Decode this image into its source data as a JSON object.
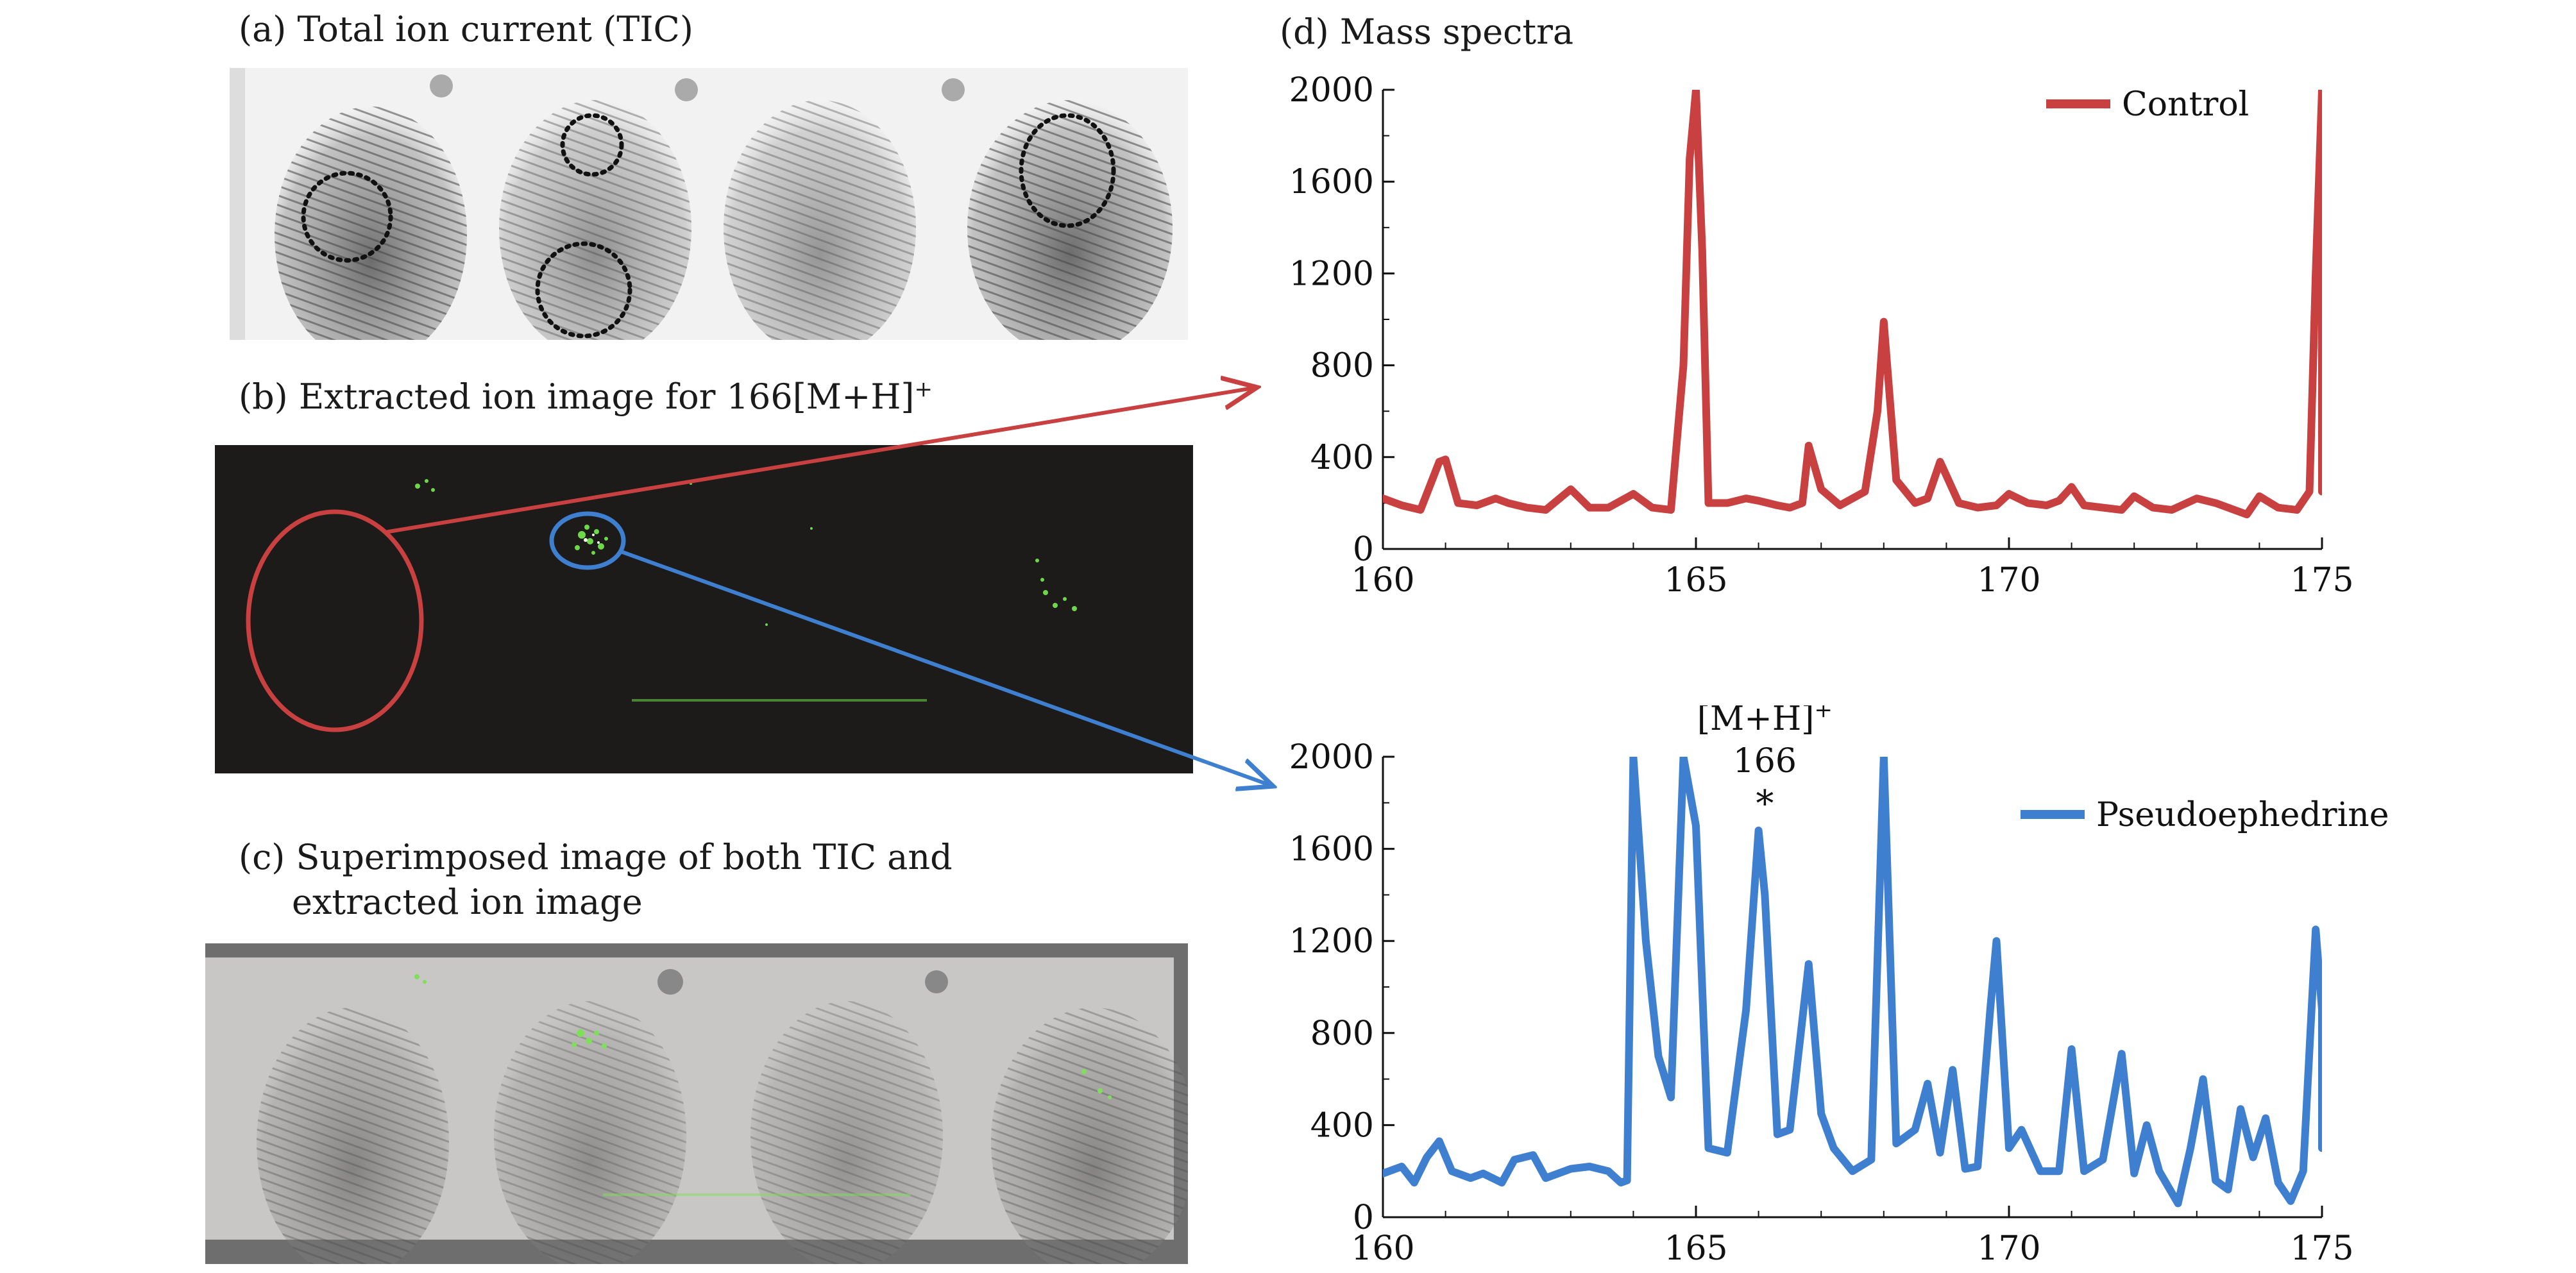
{
  "labels": {
    "a": "(a) Total ion current (TIC)",
    "b_prefix": "(b) Extracted ion image for 166[M+H]",
    "b_sup": "+",
    "c_line1": "(c) Superimposed image of both TIC and",
    "c_line2": "extracted ion image",
    "d": "(d) Mass spectra"
  },
  "colors": {
    "control": "#c94040",
    "pseudo": "#3f7fcf",
    "dark_panel": "#1a1a1a",
    "superimposed_bg": "#c8c6c4",
    "arrow_red": "#c94040",
    "arrow_blue": "#3f7fcf"
  },
  "chart_data": [
    {
      "type": "line",
      "xlim": [
        160,
        175
      ],
      "ylim": [
        0,
        2000
      ],
      "xticks": [
        160,
        165,
        170,
        175
      ],
      "yticks": [
        0,
        400,
        800,
        1200,
        1600,
        2000
      ],
      "series": [
        {
          "name": "Control",
          "x": [
            160,
            160.3,
            160.6,
            160.9,
            161,
            161.2,
            161.5,
            161.8,
            162,
            162.3,
            162.6,
            163,
            163.3,
            163.6,
            164,
            164.3,
            164.6,
            164.8,
            164.9,
            165,
            165.1,
            165.2,
            165.5,
            165.8,
            166,
            166.3,
            166.5,
            166.7,
            166.8,
            167,
            167.3,
            167.7,
            167.9,
            168,
            168.2,
            168.5,
            168.7,
            168.9,
            169.2,
            169.5,
            169.8,
            170,
            170.3,
            170.6,
            170.8,
            171,
            171.2,
            171.5,
            171.8,
            172,
            172.3,
            172.6,
            173,
            173.3,
            173.6,
            173.8,
            174,
            174.3,
            174.6,
            174.8,
            174.9,
            175,
            175.1
          ],
          "y": [
            220,
            190,
            170,
            380,
            390,
            200,
            190,
            220,
            200,
            180,
            170,
            260,
            180,
            180,
            240,
            180,
            170,
            800,
            1700,
            2000,
            1300,
            200,
            200,
            220,
            210,
            190,
            180,
            200,
            450,
            260,
            190,
            250,
            600,
            990,
            300,
            200,
            220,
            380,
            200,
            180,
            190,
            240,
            200,
            190,
            210,
            270,
            190,
            180,
            170,
            230,
            180,
            170,
            220,
            200,
            170,
            150,
            230,
            180,
            170,
            250,
            1200,
            2000,
            250
          ]
        },
        {
          "name": "Pseudoephedrine",
          "x": [
            160,
            160.3,
            160.5,
            160.7,
            160.9,
            161.1,
            161.4,
            161.6,
            161.9,
            162.1,
            162.4,
            162.6,
            163,
            163.3,
            163.6,
            163.8,
            163.9,
            164,
            164.2,
            164.4,
            164.6,
            164.8,
            165,
            165.2,
            165.5,
            165.8,
            166,
            166.1,
            166.3,
            166.5,
            166.8,
            167,
            167.2,
            167.5,
            167.8,
            168,
            168.2,
            168.5,
            168.7,
            168.9,
            169.1,
            169.3,
            169.5,
            169.7,
            169.8,
            170,
            170.2,
            170.5,
            170.8,
            171,
            171.2,
            171.5,
            171.8,
            172,
            172.2,
            172.4,
            172.7,
            172.9,
            173.1,
            173.3,
            173.5,
            173.7,
            173.9,
            174.1,
            174.3,
            174.5,
            174.7,
            174.9,
            175,
            175.1
          ],
          "y": [
            190,
            220,
            150,
            260,
            330,
            200,
            170,
            190,
            150,
            250,
            270,
            170,
            210,
            220,
            200,
            150,
            160,
            2000,
            1200,
            700,
            520,
            2000,
            1700,
            300,
            280,
            900,
            1680,
            1400,
            360,
            380,
            1100,
            450,
            300,
            200,
            250,
            2000,
            320,
            380,
            580,
            280,
            640,
            210,
            220,
            900,
            1200,
            300,
            380,
            200,
            200,
            730,
            200,
            250,
            710,
            190,
            400,
            200,
            60,
            300,
            600,
            160,
            120,
            470,
            260,
            430,
            150,
            70,
            200,
            1250,
            900,
            300
          ]
        }
      ],
      "annotation": {
        "line1": "[M+H]",
        "line1_sup": "+",
        "line2": "166",
        "marker": "*",
        "x": 166.1
      }
    }
  ]
}
